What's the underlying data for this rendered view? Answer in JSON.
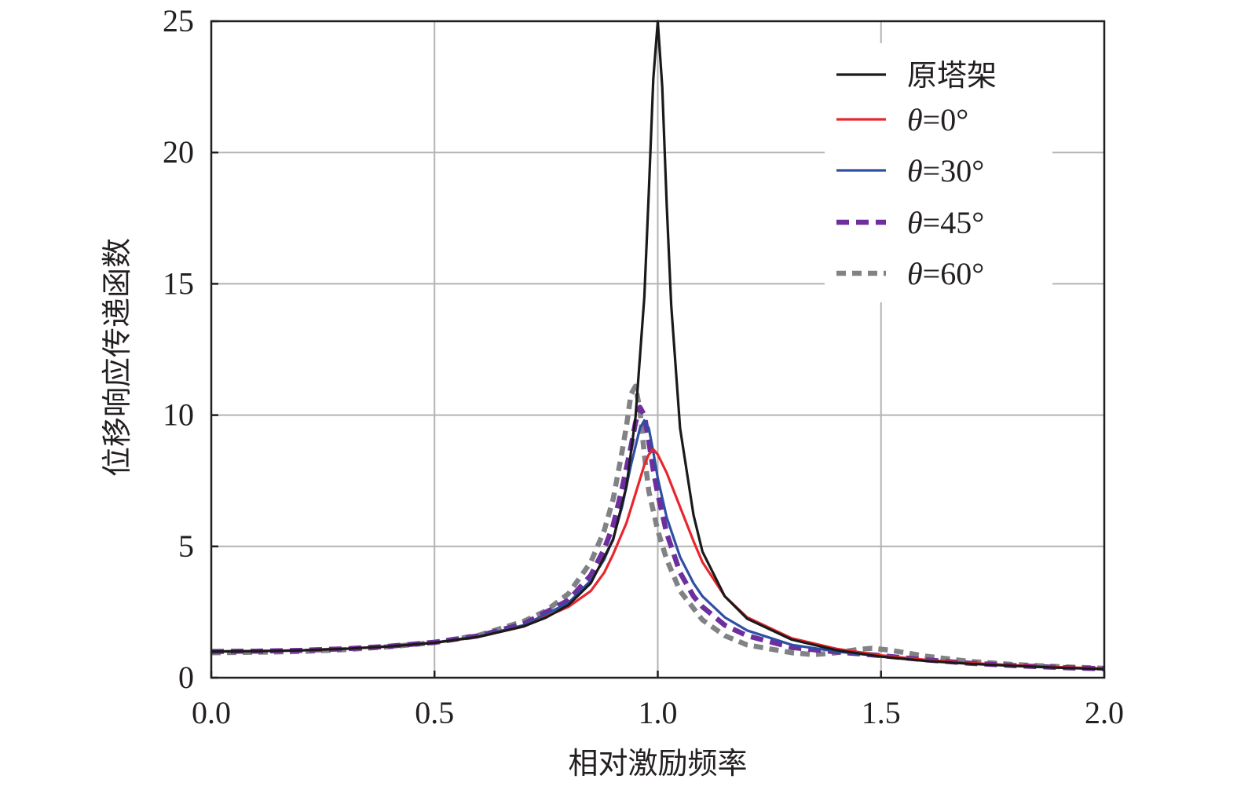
{
  "chart_data": {
    "type": "line",
    "title": "",
    "xlabel": "相对激励频率",
    "ylabel": "位移响应传递函数",
    "xlim": [
      0.0,
      2.0
    ],
    "ylim": [
      0,
      25
    ],
    "x_ticks": [
      "0.0",
      "0.5",
      "1.0",
      "1.5",
      "2.0"
    ],
    "y_ticks": [
      "0",
      "5",
      "10",
      "15",
      "20",
      "25"
    ],
    "grid": true,
    "legend_position": "top-right",
    "series": [
      {
        "name": "原塔架",
        "color": "#1a1a1a",
        "dash": "solid",
        "points": [
          [
            0.0,
            1.0
          ],
          [
            0.1,
            1.01
          ],
          [
            0.2,
            1.04
          ],
          [
            0.3,
            1.1
          ],
          [
            0.4,
            1.19
          ],
          [
            0.5,
            1.33
          ],
          [
            0.6,
            1.56
          ],
          [
            0.7,
            1.96
          ],
          [
            0.75,
            2.29
          ],
          [
            0.8,
            2.77
          ],
          [
            0.85,
            3.6
          ],
          [
            0.9,
            5.25
          ],
          [
            0.93,
            7.3
          ],
          [
            0.95,
            9.9
          ],
          [
            0.97,
            14.5
          ],
          [
            0.98,
            18.5
          ],
          [
            0.99,
            22.8
          ],
          [
            1.0,
            25.0
          ],
          [
            1.01,
            22.5
          ],
          [
            1.02,
            18.0
          ],
          [
            1.03,
            14.2
          ],
          [
            1.05,
            9.5
          ],
          [
            1.08,
            6.2
          ],
          [
            1.1,
            4.8
          ],
          [
            1.15,
            3.1
          ],
          [
            1.2,
            2.25
          ],
          [
            1.3,
            1.45
          ],
          [
            1.4,
            1.05
          ],
          [
            1.5,
            0.8
          ],
          [
            1.6,
            0.64
          ],
          [
            1.7,
            0.53
          ],
          [
            1.8,
            0.45
          ],
          [
            1.9,
            0.38
          ],
          [
            2.0,
            0.33
          ]
        ]
      },
      {
        "name": "θ=0°",
        "color": "#e8262d",
        "dash": "solid",
        "points": [
          [
            0.0,
            1.0
          ],
          [
            0.1,
            1.01
          ],
          [
            0.2,
            1.04
          ],
          [
            0.3,
            1.1
          ],
          [
            0.4,
            1.19
          ],
          [
            0.5,
            1.33
          ],
          [
            0.6,
            1.56
          ],
          [
            0.7,
            1.95
          ],
          [
            0.8,
            2.7
          ],
          [
            0.85,
            3.3
          ],
          [
            0.88,
            4.0
          ],
          [
            0.9,
            4.7
          ],
          [
            0.93,
            5.9
          ],
          [
            0.95,
            7.0
          ],
          [
            0.97,
            8.1
          ],
          [
            0.98,
            8.5
          ],
          [
            0.99,
            8.7
          ],
          [
            1.0,
            8.5
          ],
          [
            1.02,
            7.8
          ],
          [
            1.05,
            6.5
          ],
          [
            1.08,
            5.2
          ],
          [
            1.1,
            4.4
          ],
          [
            1.15,
            3.1
          ],
          [
            1.2,
            2.3
          ],
          [
            1.3,
            1.5
          ],
          [
            1.4,
            1.1
          ],
          [
            1.5,
            0.85
          ],
          [
            1.6,
            0.68
          ],
          [
            1.7,
            0.56
          ],
          [
            1.8,
            0.47
          ],
          [
            1.9,
            0.4
          ],
          [
            2.0,
            0.35
          ]
        ]
      },
      {
        "name": "θ=30°",
        "color": "#2e4fa3",
        "dash": "solid",
        "points": [
          [
            0.0,
            1.0
          ],
          [
            0.1,
            1.01
          ],
          [
            0.2,
            1.04
          ],
          [
            0.3,
            1.1
          ],
          [
            0.4,
            1.2
          ],
          [
            0.5,
            1.34
          ],
          [
            0.6,
            1.58
          ],
          [
            0.7,
            2.0
          ],
          [
            0.8,
            2.85
          ],
          [
            0.85,
            3.7
          ],
          [
            0.88,
            4.5
          ],
          [
            0.9,
            5.3
          ],
          [
            0.92,
            6.5
          ],
          [
            0.94,
            8.1
          ],
          [
            0.96,
            9.5
          ],
          [
            0.97,
            9.8
          ],
          [
            0.98,
            9.5
          ],
          [
            0.99,
            8.6
          ],
          [
            1.0,
            7.6
          ],
          [
            1.02,
            6.1
          ],
          [
            1.05,
            4.6
          ],
          [
            1.08,
            3.6
          ],
          [
            1.1,
            3.1
          ],
          [
            1.15,
            2.3
          ],
          [
            1.2,
            1.8
          ],
          [
            1.3,
            1.25
          ],
          [
            1.4,
            1.0
          ],
          [
            1.5,
            0.82
          ],
          [
            1.6,
            0.66
          ],
          [
            1.7,
            0.55
          ],
          [
            1.8,
            0.46
          ],
          [
            1.9,
            0.39
          ],
          [
            2.0,
            0.34
          ]
        ]
      },
      {
        "name": "θ=45°",
        "color": "#6e2e9e",
        "dash": "long",
        "points": [
          [
            0.0,
            1.0
          ],
          [
            0.1,
            1.01
          ],
          [
            0.2,
            1.04
          ],
          [
            0.3,
            1.1
          ],
          [
            0.4,
            1.2
          ],
          [
            0.5,
            1.35
          ],
          [
            0.6,
            1.6
          ],
          [
            0.7,
            2.05
          ],
          [
            0.8,
            2.95
          ],
          [
            0.85,
            3.9
          ],
          [
            0.88,
            4.9
          ],
          [
            0.9,
            5.8
          ],
          [
            0.92,
            7.2
          ],
          [
            0.94,
            8.8
          ],
          [
            0.95,
            9.7
          ],
          [
            0.96,
            10.3
          ],
          [
            0.97,
            10.0
          ],
          [
            0.98,
            9.0
          ],
          [
            0.99,
            7.9
          ],
          [
            1.0,
            7.0
          ],
          [
            1.02,
            5.5
          ],
          [
            1.05,
            4.0
          ],
          [
            1.08,
            3.1
          ],
          [
            1.1,
            2.7
          ],
          [
            1.15,
            2.0
          ],
          [
            1.2,
            1.6
          ],
          [
            1.3,
            1.15
          ],
          [
            1.4,
            0.98
          ],
          [
            1.5,
            0.84
          ],
          [
            1.6,
            0.68
          ],
          [
            1.7,
            0.55
          ],
          [
            1.8,
            0.46
          ],
          [
            1.9,
            0.39
          ],
          [
            2.0,
            0.34
          ]
        ]
      },
      {
        "name": "θ=60°",
        "color": "#808285",
        "dash": "short",
        "points": [
          [
            0.0,
            0.95
          ],
          [
            0.1,
            0.97
          ],
          [
            0.2,
            1.0
          ],
          [
            0.3,
            1.07
          ],
          [
            0.4,
            1.18
          ],
          [
            0.5,
            1.34
          ],
          [
            0.6,
            1.62
          ],
          [
            0.7,
            2.15
          ],
          [
            0.75,
            2.55
          ],
          [
            0.8,
            3.2
          ],
          [
            0.85,
            4.4
          ],
          [
            0.88,
            5.6
          ],
          [
            0.9,
            6.8
          ],
          [
            0.92,
            8.6
          ],
          [
            0.93,
            9.6
          ],
          [
            0.94,
            10.8
          ],
          [
            0.95,
            11.1
          ],
          [
            0.96,
            10.2
          ],
          [
            0.97,
            8.5
          ],
          [
            0.98,
            7.1
          ],
          [
            1.0,
            5.6
          ],
          [
            1.02,
            4.5
          ],
          [
            1.05,
            3.3
          ],
          [
            1.1,
            2.2
          ],
          [
            1.15,
            1.6
          ],
          [
            1.2,
            1.25
          ],
          [
            1.3,
            0.95
          ],
          [
            1.35,
            0.88
          ],
          [
            1.4,
            0.95
          ],
          [
            1.45,
            1.08
          ],
          [
            1.48,
            1.12
          ],
          [
            1.52,
            1.05
          ],
          [
            1.6,
            0.82
          ],
          [
            1.7,
            0.62
          ],
          [
            1.8,
            0.5
          ],
          [
            1.9,
            0.42
          ],
          [
            2.0,
            0.36
          ]
        ]
      }
    ]
  }
}
